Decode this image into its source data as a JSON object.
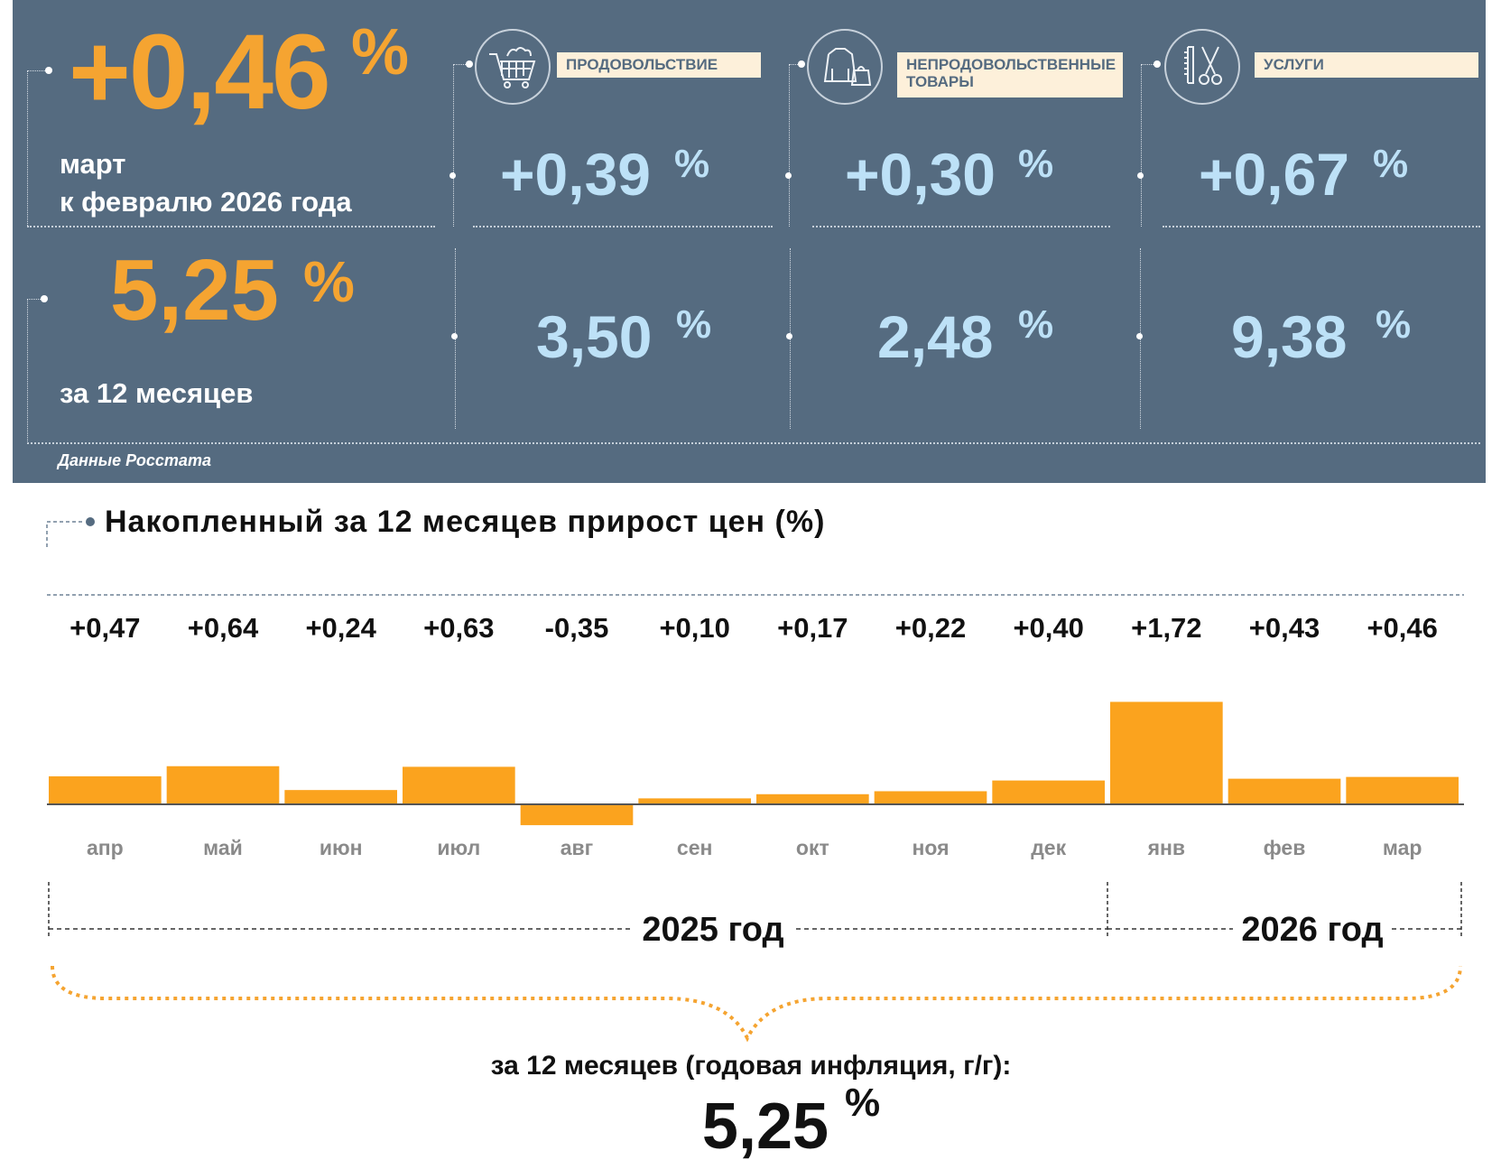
{
  "summary": {
    "monthly_value": "+0,46",
    "monthly_pct": "%",
    "monthly_caption_1": "март",
    "monthly_caption_2": "к февралю 2026 года",
    "annual_value": "5,25",
    "annual_pct": "%",
    "annual_caption": "за 12 месяцев",
    "source": "Данные Росстата"
  },
  "categories": [
    {
      "icon": "shopping-cart-icon",
      "label_1": "ПРОДОВОЛЬСТВИЕ",
      "label_2": "",
      "monthly": "+0,39",
      "annual": "3,50",
      "pct": "%"
    },
    {
      "icon": "clothes-icon",
      "label_1": "НЕПРОДОВОЛЬСТВЕННЫЕ",
      "label_2": "ТОВАРЫ",
      "monthly": "+0,30",
      "annual": "2,48",
      "pct": "%"
    },
    {
      "icon": "scissors-comb-icon",
      "label_1": "УСЛУГИ",
      "label_2": "",
      "monthly": "+0,67",
      "annual": "9,38",
      "pct": "%"
    }
  ],
  "colors": {
    "panel": "#556b80",
    "orange": "#f5a431",
    "light_blue": "#bde1f7",
    "bar": "#fba31e"
  },
  "chart_data": {
    "type": "bar",
    "title": "Накопленный за 12 месяцев прирост цен (%)",
    "categories": [
      "апр",
      "май",
      "июн",
      "июл",
      "авг",
      "сен",
      "окт",
      "ноя",
      "дек",
      "янв",
      "фев",
      "мар"
    ],
    "values": [
      0.47,
      0.64,
      0.24,
      0.63,
      -0.35,
      0.1,
      0.17,
      0.22,
      0.4,
      1.72,
      0.43,
      0.46
    ],
    "value_labels": [
      "+0,47",
      "+0,64",
      "+0,24",
      "+0,63",
      "-0,35",
      "+0,10",
      "+0,17",
      "+0,22",
      "+0,40",
      "+1,72",
      "+0,43",
      "+0,46"
    ],
    "year_groups": [
      {
        "label": "2025 год",
        "months": 9
      },
      {
        "label": "2026 год",
        "months": 3
      }
    ],
    "annual_caption": "за 12 месяцев (годовая инфляция, г/г):",
    "annual_value": "5,25",
    "annual_pct": "%"
  }
}
